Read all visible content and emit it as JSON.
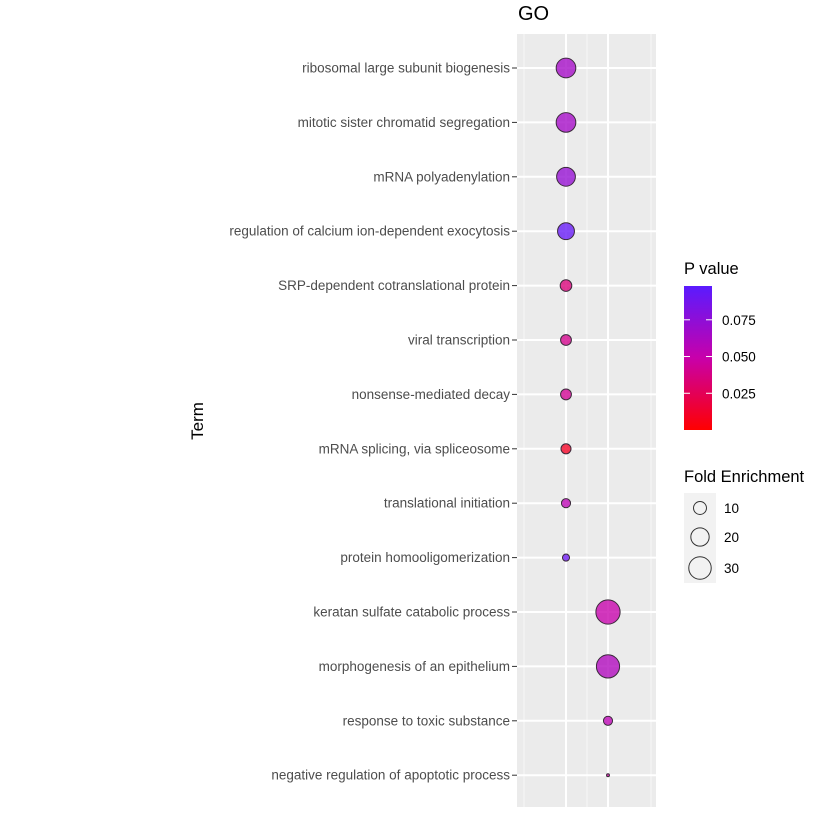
{
  "chart_data": {
    "type": "scatter",
    "title": "GO",
    "ylabel": "Term",
    "xlabel": "",
    "terms": [
      "ribosomal large subunit biogenesis",
      "mitotic sister chromatid segregation",
      "mRNA polyadenylation",
      "regulation of calcium ion-dependent exocytosis",
      "SRP-dependent cotranslational protein",
      "viral transcription",
      "nonsense-mediated decay",
      "mRNA splicing, via spliceosome",
      "translational initiation",
      "protein homooligomerization",
      "keratan sulfate catabolic process",
      "morphogenesis of an epithelium",
      "response to toxic substance",
      "negative regulation of apoptotic process"
    ],
    "points": [
      {
        "x_group": 1,
        "fold_enrichment": 23,
        "p_value": 0.065
      },
      {
        "x_group": 1,
        "fold_enrichment": 23,
        "p_value": 0.065
      },
      {
        "x_group": 1,
        "fold_enrichment": 21,
        "p_value": 0.072
      },
      {
        "x_group": 1,
        "fold_enrichment": 17,
        "p_value": 0.093
      },
      {
        "x_group": 1,
        "fold_enrichment": 8,
        "p_value": 0.035
      },
      {
        "x_group": 1,
        "fold_enrichment": 7,
        "p_value": 0.04
      },
      {
        "x_group": 1,
        "fold_enrichment": 7,
        "p_value": 0.042
      },
      {
        "x_group": 1,
        "fold_enrichment": 6,
        "p_value": 0.01
      },
      {
        "x_group": 1,
        "fold_enrichment": 5,
        "p_value": 0.055
      },
      {
        "x_group": 1,
        "fold_enrichment": 3,
        "p_value": 0.09
      },
      {
        "x_group": 2,
        "fold_enrichment": 35,
        "p_value": 0.05
      },
      {
        "x_group": 2,
        "fold_enrichment": 32,
        "p_value": 0.06
      },
      {
        "x_group": 2,
        "fold_enrichment": 5,
        "p_value": 0.055
      },
      {
        "x_group": 2,
        "fold_enrichment": 0.5,
        "p_value": 0.045
      }
    ],
    "color_legend": {
      "title": "P value",
      "low_color": "#ff0000",
      "high_color": "#5a1bff",
      "range": [
        0.0,
        0.098
      ],
      "ticks": [
        "0.025",
        "0.050",
        "0.075"
      ],
      "tick_values": [
        0.025,
        0.05,
        0.075
      ]
    },
    "size_legend": {
      "title": "Fold Enrichment",
      "labels": [
        "10",
        "20",
        "30"
      ],
      "values": [
        10,
        20,
        30
      ]
    },
    "grid": true,
    "panel_background": "#ebebeb",
    "point_stroke": "#3a2a3a"
  }
}
